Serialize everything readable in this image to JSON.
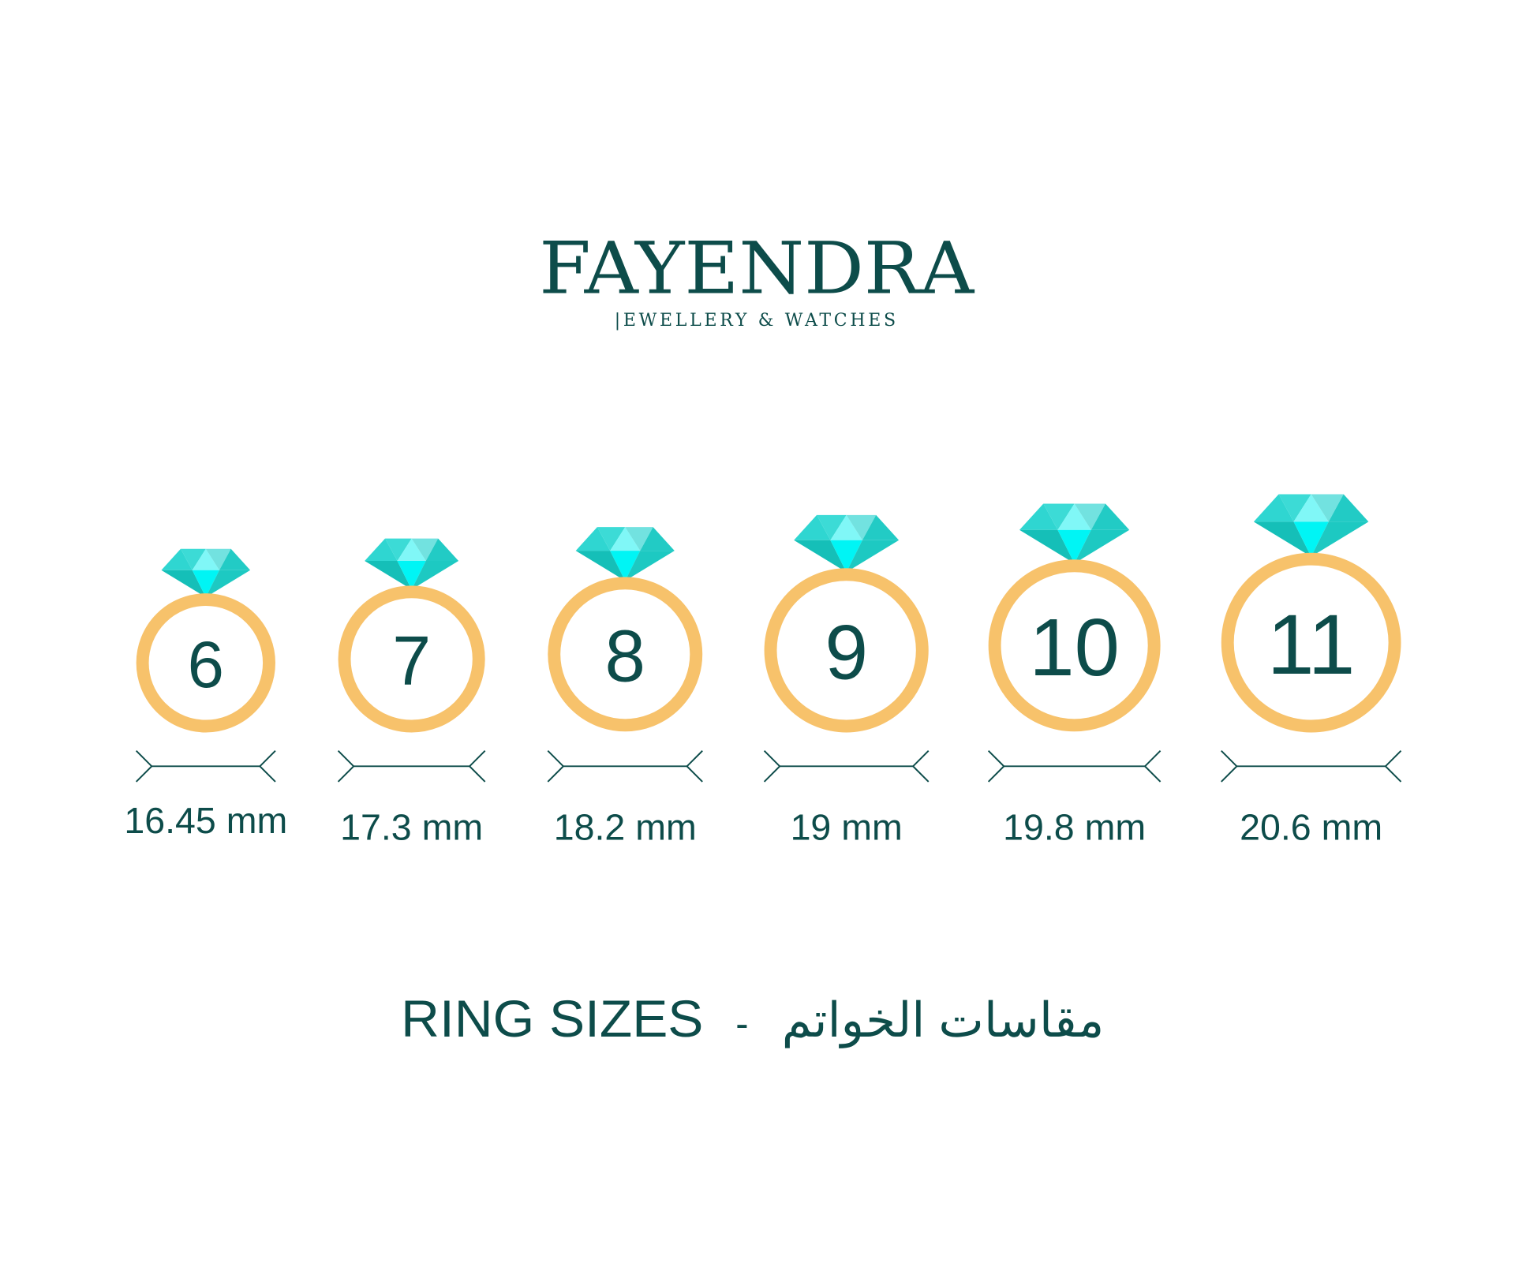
{
  "brand": {
    "name": "FAYENDRA",
    "tagline": "|EWELLERY & WATCHES"
  },
  "colors": {
    "text": "#0d4c4a",
    "ring_band": "#f7c26b",
    "gem": "#1fd0ca"
  },
  "rings": [
    {
      "size": "6",
      "diameter": "16.45 mm"
    },
    {
      "size": "7",
      "diameter": "17.3 mm"
    },
    {
      "size": "8",
      "diameter": "18.2 mm"
    },
    {
      "size": "9",
      "diameter": "19 mm"
    },
    {
      "size": "10",
      "diameter": "19.8 mm"
    },
    {
      "size": "11",
      "diameter": "20.6 mm"
    }
  ],
  "footer": {
    "title_en": "RING SIZES",
    "separator": "-",
    "title_ar": "مقاسات الخواتم"
  }
}
